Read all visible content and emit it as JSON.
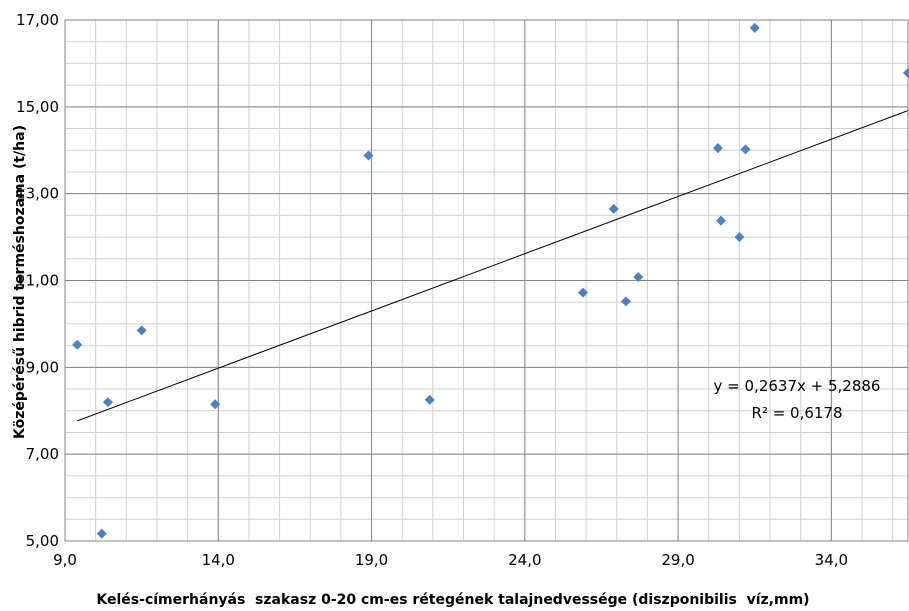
{
  "chart_data": {
    "type": "scatter",
    "xlabel": "Kelés-címerhányás  szakasz 0-20 cm-es rétegének talajnedvessége (diszponibilis  víz,mm)",
    "ylabel": "Középérésű hibrid terméshozama (t/ha)",
    "xlim": [
      9.0,
      36.5
    ],
    "ylim": [
      5.0,
      17.0
    ],
    "x_ticks": [
      9.0,
      14.0,
      19.0,
      24.0,
      29.0,
      34.0
    ],
    "x_tick_labels": [
      "9,0",
      "14,0",
      "19,0",
      "24,0",
      "29,0",
      "34,0"
    ],
    "y_ticks": [
      5.0,
      7.0,
      9.0,
      11.0,
      13.0,
      15.0,
      17.0
    ],
    "y_tick_labels": [
      "5,00",
      "7,00",
      "9,00",
      "11,00",
      "13,00",
      "15,00",
      "17,00"
    ],
    "x_minor_step": 1.0,
    "y_minor_step": 0.5,
    "grid": true,
    "marker_color": "#4f81bd",
    "trendline_color": "#000000",
    "points": [
      {
        "x": 9.4,
        "y": 9.52
      },
      {
        "x": 10.2,
        "y": 5.17
      },
      {
        "x": 10.4,
        "y": 8.2
      },
      {
        "x": 11.5,
        "y": 9.85
      },
      {
        "x": 13.9,
        "y": 8.15
      },
      {
        "x": 18.9,
        "y": 13.88
      },
      {
        "x": 20.9,
        "y": 8.25
      },
      {
        "x": 25.9,
        "y": 10.72
      },
      {
        "x": 26.9,
        "y": 12.65
      },
      {
        "x": 27.3,
        "y": 10.52
      },
      {
        "x": 27.7,
        "y": 11.08
      },
      {
        "x": 30.3,
        "y": 14.05
      },
      {
        "x": 30.4,
        "y": 12.38
      },
      {
        "x": 31.0,
        "y": 12.0
      },
      {
        "x": 31.2,
        "y": 14.02
      },
      {
        "x": 31.5,
        "y": 16.82
      },
      {
        "x": 36.5,
        "y": 15.78
      }
    ],
    "trendline": {
      "slope": 0.2637,
      "intercept": 5.2886,
      "x_start": 9.4,
      "x_end": 36.5,
      "equation_label": "y = 0,2637x + 5,2886",
      "r2_label": "R² = 0,6178"
    }
  }
}
